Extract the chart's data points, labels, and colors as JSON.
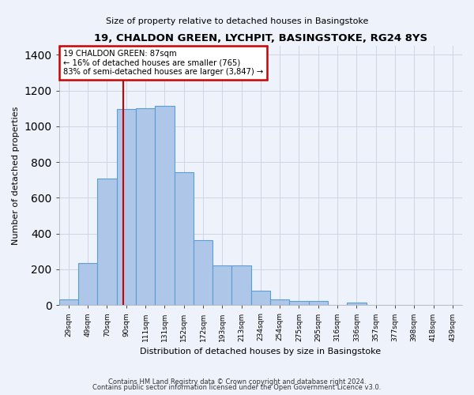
{
  "title": "19, CHALDON GREEN, LYCHPIT, BASINGSTOKE, RG24 8YS",
  "subtitle": "Size of property relative to detached houses in Basingstoke",
  "xlabel": "Distribution of detached houses by size in Basingstoke",
  "ylabel": "Number of detached properties",
  "categories": [
    "29sqm",
    "49sqm",
    "70sqm",
    "90sqm",
    "111sqm",
    "131sqm",
    "152sqm",
    "172sqm",
    "193sqm",
    "213sqm",
    "234sqm",
    "254sqm",
    "275sqm",
    "295sqm",
    "316sqm",
    "336sqm",
    "357sqm",
    "377sqm",
    "398sqm",
    "418sqm",
    "439sqm"
  ],
  "values": [
    30,
    235,
    710,
    1095,
    1100,
    1115,
    745,
    365,
    220,
    220,
    80,
    30,
    22,
    22,
    0,
    15,
    0,
    0,
    0,
    0,
    0
  ],
  "bar_color": "#aec6e8",
  "bar_edge_color": "#5a9fd4",
  "background_color": "#eef2fb",
  "grid_color": "#c8d0e0",
  "annotation_line1": "19 CHALDON GREEN: 87sqm",
  "annotation_line2": "← 16% of detached houses are smaller (765)",
  "annotation_line3": "83% of semi-detached houses are larger (3,847) →",
  "annotation_box_color": "#ffffff",
  "annotation_box_edge": "#cc0000",
  "vline_color": "#cc0000",
  "ylim": [
    0,
    1450
  ],
  "footer_line1": "Contains HM Land Registry data © Crown copyright and database right 2024.",
  "footer_line2": "Contains public sector information licensed under the Open Government Licence v3.0."
}
